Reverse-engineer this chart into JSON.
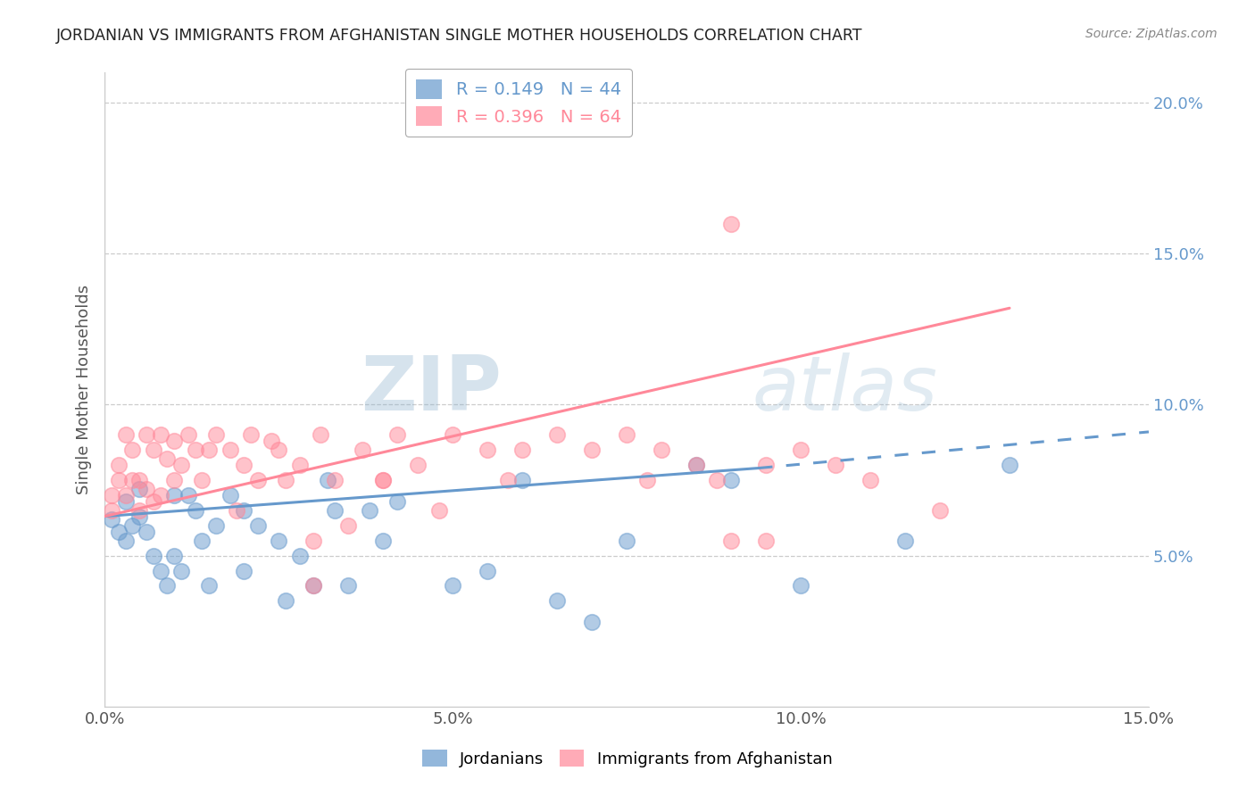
{
  "title": "JORDANIAN VS IMMIGRANTS FROM AFGHANISTAN SINGLE MOTHER HOUSEHOLDS CORRELATION CHART",
  "source": "Source: ZipAtlas.com",
  "ylabel": "Single Mother Households",
  "xlabel": "",
  "legend_label_blue": "Jordanians",
  "legend_label_pink": "Immigrants from Afghanistan",
  "R_blue": 0.149,
  "N_blue": 44,
  "R_pink": 0.396,
  "N_pink": 64,
  "color_blue": "#6699CC",
  "color_pink": "#FF8899",
  "xlim": [
    0.0,
    0.15
  ],
  "ylim": [
    0.0,
    0.21
  ],
  "xticks": [
    0.0,
    0.05,
    0.1,
    0.15
  ],
  "xtick_labels": [
    "0.0%",
    "5.0%",
    "10.0%",
    "15.0%"
  ],
  "yticks_right": [
    0.05,
    0.1,
    0.15,
    0.2
  ],
  "ytick_labels_right": [
    "5.0%",
    "10.0%",
    "15.0%",
    "20.0%"
  ],
  "watermark_zip": "ZIP",
  "watermark_atlas": "atlas",
  "blue_x": [
    0.001,
    0.002,
    0.003,
    0.003,
    0.004,
    0.005,
    0.005,
    0.006,
    0.007,
    0.008,
    0.009,
    0.01,
    0.01,
    0.011,
    0.012,
    0.013,
    0.014,
    0.015,
    0.016,
    0.018,
    0.02,
    0.02,
    0.022,
    0.025,
    0.026,
    0.028,
    0.03,
    0.032,
    0.033,
    0.035,
    0.038,
    0.04,
    0.042,
    0.05,
    0.055,
    0.06,
    0.065,
    0.07,
    0.075,
    0.085,
    0.09,
    0.1,
    0.115,
    0.13
  ],
  "blue_y": [
    0.062,
    0.058,
    0.055,
    0.068,
    0.06,
    0.063,
    0.072,
    0.058,
    0.05,
    0.045,
    0.04,
    0.07,
    0.05,
    0.045,
    0.07,
    0.065,
    0.055,
    0.04,
    0.06,
    0.07,
    0.065,
    0.045,
    0.06,
    0.055,
    0.035,
    0.05,
    0.04,
    0.075,
    0.065,
    0.04,
    0.065,
    0.055,
    0.068,
    0.04,
    0.045,
    0.075,
    0.035,
    0.028,
    0.055,
    0.08,
    0.075,
    0.04,
    0.055,
    0.08
  ],
  "pink_x": [
    0.001,
    0.001,
    0.002,
    0.002,
    0.003,
    0.003,
    0.004,
    0.004,
    0.005,
    0.005,
    0.006,
    0.006,
    0.007,
    0.007,
    0.008,
    0.008,
    0.009,
    0.01,
    0.01,
    0.011,
    0.012,
    0.013,
    0.014,
    0.015,
    0.016,
    0.018,
    0.019,
    0.02,
    0.021,
    0.022,
    0.024,
    0.025,
    0.026,
    0.028,
    0.03,
    0.031,
    0.033,
    0.035,
    0.037,
    0.04,
    0.042,
    0.045,
    0.048,
    0.05,
    0.055,
    0.058,
    0.06,
    0.065,
    0.07,
    0.075,
    0.078,
    0.08,
    0.085,
    0.088,
    0.09,
    0.095,
    0.1,
    0.105,
    0.11,
    0.12,
    0.09,
    0.095,
    0.04,
    0.03
  ],
  "pink_y": [
    0.07,
    0.065,
    0.075,
    0.08,
    0.07,
    0.09,
    0.075,
    0.085,
    0.065,
    0.075,
    0.072,
    0.09,
    0.068,
    0.085,
    0.07,
    0.09,
    0.082,
    0.075,
    0.088,
    0.08,
    0.09,
    0.085,
    0.075,
    0.085,
    0.09,
    0.085,
    0.065,
    0.08,
    0.09,
    0.075,
    0.088,
    0.085,
    0.075,
    0.08,
    0.055,
    0.09,
    0.075,
    0.06,
    0.085,
    0.075,
    0.09,
    0.08,
    0.065,
    0.09,
    0.085,
    0.075,
    0.085,
    0.09,
    0.085,
    0.09,
    0.075,
    0.085,
    0.08,
    0.075,
    0.055,
    0.08,
    0.085,
    0.08,
    0.075,
    0.065,
    0.16,
    0.055,
    0.075,
    0.04
  ],
  "blue_line_x0": 0.0,
  "blue_line_x_solid_end": 0.094,
  "blue_line_x_dash_end": 0.15,
  "blue_line_y0": 0.063,
  "blue_line_y_solid_end": 0.079,
  "blue_line_y_dash_end": 0.091,
  "pink_line_x0": 0.0,
  "pink_line_x_end": 0.13,
  "pink_line_y0": 0.063,
  "pink_line_y_end": 0.132
}
